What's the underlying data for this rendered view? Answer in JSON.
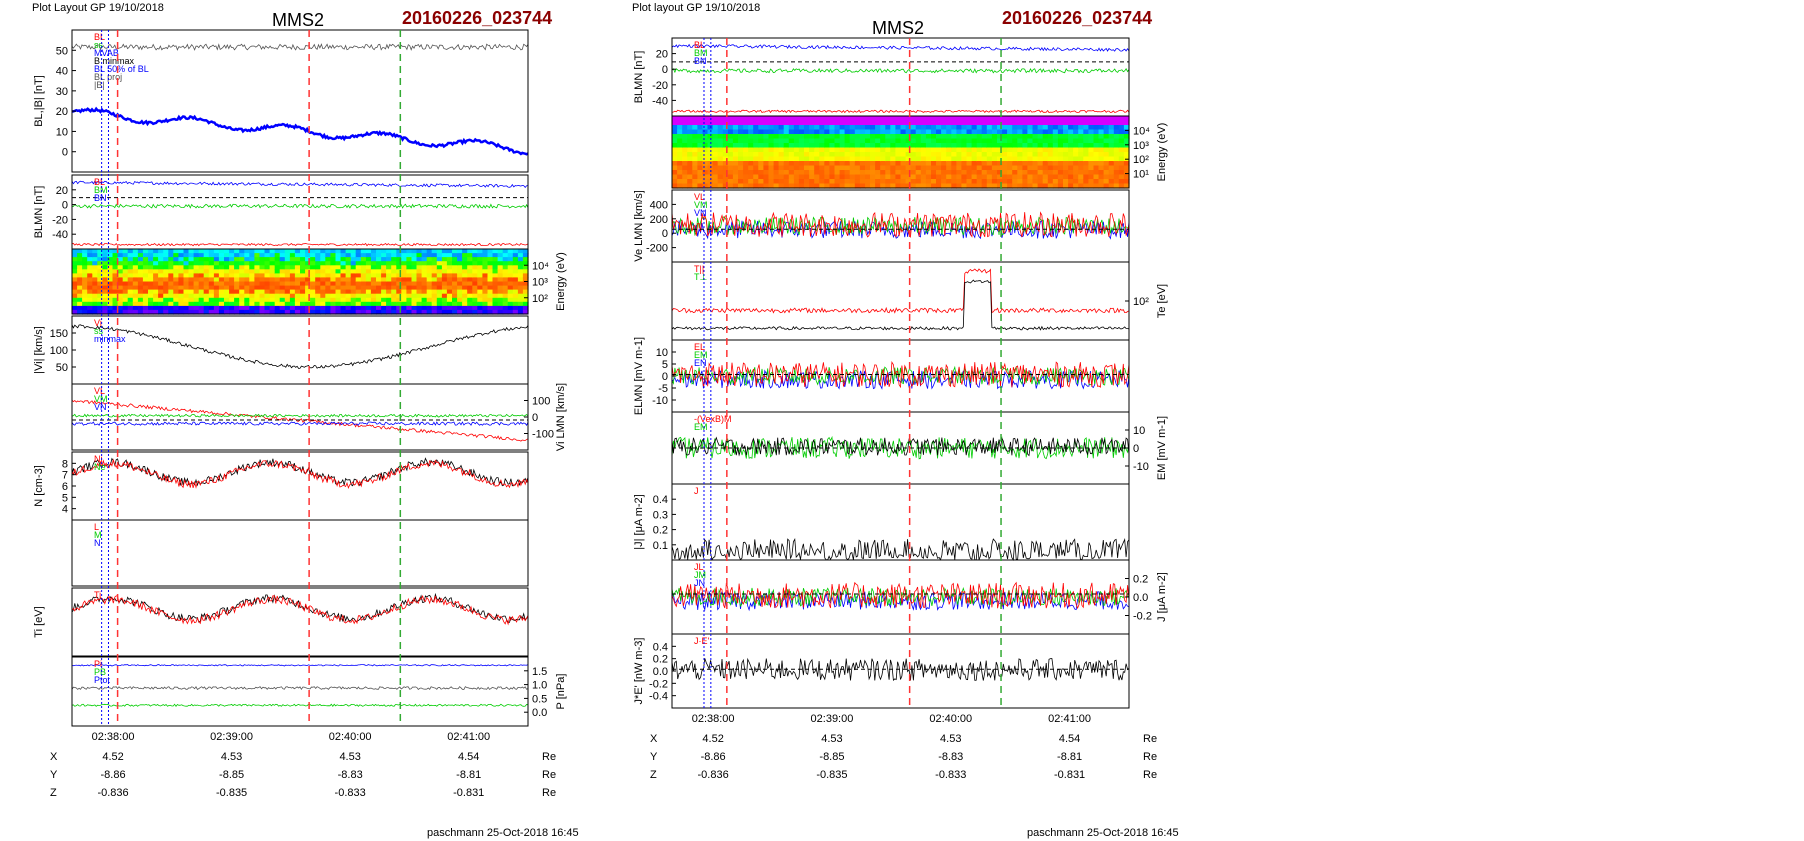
{
  "colors": {
    "black": "#000000",
    "red": "#ff0000",
    "green": "#00cc00",
    "blue": "#0000ff",
    "gray": "#555555",
    "magenta": "#cc00cc",
    "title_id": "#8b0000",
    "vline_red": "#ff3333",
    "vline_green": "#33aa33",
    "vline_gray": "#aaaaaa"
  },
  "left": {
    "header": "Plot Layout GP 19/10/2018",
    "spacecraft": "MMS2",
    "event_id": "20160226_023744",
    "footer": "paschmann 25-Oct-2018 16:45",
    "time_ticks": [
      "02:38:00",
      "02:39:00",
      "02:40:00",
      "02:41:00"
    ],
    "vlines_red": [
      0.1,
      0.52
    ],
    "vlines_green": [
      0.72
    ],
    "vlines_blue": [
      0.065,
      0.08
    ],
    "ephemeris": [
      {
        "label": "X",
        "values": [
          "4.52",
          "4.53",
          "4.53",
          "4.54"
        ],
        "unit": "Re"
      },
      {
        "label": "Y",
        "values": [
          "-8.86",
          "-8.85",
          "-8.83",
          "-8.81"
        ],
        "unit": "Re"
      },
      {
        "label": "Z",
        "values": [
          "-0.836",
          "-0.835",
          "-0.833",
          "-0.831"
        ],
        "unit": "Re"
      }
    ],
    "panels": [
      {
        "id": "bl-b",
        "ylabel": "BL,|B| [nT]",
        "side": "left",
        "yticks": [
          "0",
          "10",
          "20",
          "30",
          "40",
          "50"
        ],
        "ylim": [
          -2,
          57
        ],
        "legend": [
          "BL",
          "ss",
          "MVAB",
          "B minmax",
          "BL 50% of BL",
          "BL proj",
          "|B|"
        ]
      },
      {
        "id": "blmn",
        "ylabel": "BLMN [nT]",
        "side": "left",
        "yticks": [
          "-40",
          "-20",
          "0",
          "20"
        ],
        "ylim": [
          -50,
          22
        ],
        "legend": [
          "BL",
          "BM",
          "BN"
        ]
      },
      {
        "id": "ion-spec",
        "ylabel": "Energy (eV)",
        "side": "right",
        "yticks": [
          "10²",
          "10³",
          "10⁴"
        ],
        "ylim": [
          1,
          4.5
        ],
        "legend": []
      },
      {
        "id": "vi-mag",
        "ylabel": "|Vi| [km/s]",
        "side": "left",
        "yticks": [
          "50",
          "100",
          "150"
        ],
        "ylim": [
          0,
          190
        ],
        "legend": [
          "Vi",
          "ss",
          "minmax"
        ]
      },
      {
        "id": "vi-lmn",
        "ylabel": "Vi LMN [km/s]",
        "side": "right",
        "yticks": [
          "-100",
          "0",
          "100"
        ],
        "ylim": [
          -150,
          180
        ],
        "legend": [
          "VL",
          "VM",
          "VN"
        ]
      },
      {
        "id": "n",
        "ylabel": "N [cm-3]",
        "side": "left",
        "yticks": [
          "4",
          "5",
          "6",
          "7",
          "8"
        ],
        "ylim": [
          3.5,
          8
        ],
        "legend": [
          "Ni",
          "Ne"
        ]
      },
      {
        "id": "mva",
        "ylabel": "",
        "side": "right",
        "yticks": [],
        "ylim": [
          0,
          1
        ],
        "legend": [
          "L",
          "M",
          "N"
        ]
      },
      {
        "id": "ti",
        "ylabel": "Ti [eV]",
        "side": "left",
        "yticks": [],
        "ylim": [
          0,
          1
        ],
        "legend": [
          "Ti"
        ]
      },
      {
        "id": "p",
        "ylabel": "P [nPa]",
        "side": "right",
        "yticks": [
          "0.0",
          "0.5",
          "1.0",
          "1.5"
        ],
        "ylim": [
          0,
          1.7
        ],
        "legend": [
          "Pi",
          "PB",
          "Ptot"
        ]
      }
    ]
  },
  "right": {
    "header": "Plot layout GP 19/10/2018",
    "spacecraft": "MMS2",
    "event_id": "20160226_023744",
    "footer": "paschmann 25-Oct-2018 16:45",
    "time_ticks": [
      "02:38:00",
      "02:39:00",
      "02:40:00",
      "02:41:00"
    ],
    "vlines_red": [
      0.12,
      0.52
    ],
    "vlines_green": [
      0.72
    ],
    "vlines_blue": [
      0.07,
      0.085
    ],
    "ephemeris": [
      {
        "label": "X",
        "values": [
          "4.52",
          "4.53",
          "4.53",
          "4.54"
        ],
        "unit": "Re"
      },
      {
        "label": "Y",
        "values": [
          "-8.86",
          "-8.85",
          "-8.83",
          "-8.81"
        ],
        "unit": "Re"
      },
      {
        "label": "Z",
        "values": [
          "-0.836",
          "-0.835",
          "-0.833",
          "-0.831"
        ],
        "unit": "Re"
      }
    ],
    "panels": [
      {
        "id": "blmn",
        "ylabel": "BLMN [nT]",
        "side": "left",
        "yticks": [
          "-40",
          "-20",
          "0",
          "20"
        ],
        "ylim": [
          -52,
          23
        ],
        "legend": [
          "BL",
          "BM",
          "BN"
        ]
      },
      {
        "id": "e-spec",
        "ylabel": "Energy (eV)",
        "side": "right",
        "yticks": [
          "10¹",
          "10²",
          "10³",
          "10⁴"
        ],
        "ylim": [
          1,
          4.5
        ],
        "legend": []
      },
      {
        "id": "ve-lmn",
        "ylabel": "Ve LMN [km/s]",
        "side": "left",
        "yticks": [
          "-200",
          "0",
          "200",
          "400"
        ],
        "ylim": [
          -350,
          420
        ],
        "legend": [
          "VL",
          "VM",
          "VN"
        ]
      },
      {
        "id": "te",
        "ylabel": "Te [eV]",
        "side": "right",
        "yticks": [
          "10²"
        ],
        "ylim": [
          0,
          1
        ],
        "legend": [
          "T||",
          "T⊥"
        ]
      },
      {
        "id": "elmn",
        "ylabel": "ELMN [mV m-1]",
        "side": "left",
        "yticks": [
          "-10",
          "-5",
          "0",
          "5",
          "10"
        ],
        "ylim": [
          -13,
          12
        ],
        "legend": [
          "EL",
          "EM",
          "EN"
        ]
      },
      {
        "id": "em",
        "ylabel": "EM [mV m-1]",
        "side": "right",
        "yticks": [
          "-10",
          "0",
          "10"
        ],
        "ylim": [
          -17,
          17
        ],
        "legend": [
          "-(VexB)M",
          "EM"
        ]
      },
      {
        "id": "j-mag",
        "ylabel": "|J| [μA m-2]",
        "side": "left",
        "yticks": [
          "0.1",
          "0.2",
          "0.3",
          "0.4"
        ],
        "ylim": [
          0,
          0.45
        ],
        "legend": [
          "J"
        ]
      },
      {
        "id": "j-lmn",
        "ylabel": "J [μA m-2]",
        "side": "right",
        "yticks": [
          "-0.2",
          "0.0",
          "0.2"
        ],
        "ylim": [
          -0.33,
          0.28
        ],
        "legend": [
          "JL",
          "JM",
          "JN"
        ]
      },
      {
        "id": "je",
        "ylabel": "J*E' [nW m-3]",
        "side": "left",
        "yticks": [
          "-0.4",
          "-0.2",
          "0.0",
          "0.2",
          "0.4"
        ],
        "ylim": [
          -0.55,
          0.5
        ],
        "legend": [
          "J·E'"
        ]
      }
    ]
  }
}
